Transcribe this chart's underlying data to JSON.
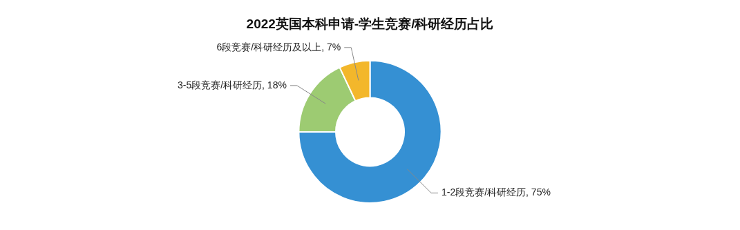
{
  "chart_data": {
    "type": "donut",
    "title": "2022英国本科申请-学生竞赛/科研经历占比",
    "categories": [
      "1-2段竞赛/科研经历",
      "3-5段竞赛/科研经历",
      "6段竞赛/科研经历及以上"
    ],
    "values": [
      75,
      18,
      7
    ],
    "colors": [
      "#3590d3",
      "#9dcb72",
      "#f3b72b"
    ],
    "value_labels": [
      "75%",
      "18%",
      "7%"
    ],
    "legend": false
  }
}
